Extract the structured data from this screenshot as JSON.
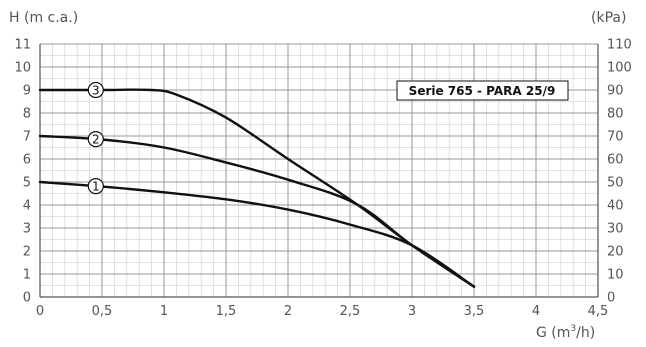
{
  "chart_data": {
    "type": "line",
    "title": "Serie 765 - PARA 25/9",
    "ylabel": "H (m c.a.)",
    "ylabel_right": "(kPa)",
    "xlabel_prefix": "G (m",
    "xlabel_sup": "3",
    "xlabel_suffix": "/h)",
    "xlim": [
      0,
      4.5
    ],
    "ylim": [
      0,
      11
    ],
    "ylim_right": [
      0,
      110
    ],
    "grid": true,
    "x_ticks": [
      "0",
      "0,5",
      "1",
      "1,5",
      "2",
      "2,5",
      "3",
      "3,5",
      "4",
      "4,5"
    ],
    "y_ticks": [
      "0",
      "1",
      "2",
      "3",
      "4",
      "5",
      "6",
      "7",
      "8",
      "9",
      "10",
      "11"
    ],
    "y_ticks_right": [
      "0",
      "10",
      "20",
      "30",
      "40",
      "50",
      "60",
      "70",
      "80",
      "90",
      "100",
      "110"
    ],
    "series": [
      {
        "name": "1",
        "x": [
          0,
          0.5,
          1,
          1.5,
          2,
          2.5,
          3,
          3.5
        ],
        "y": [
          5.0,
          4.8,
          4.55,
          4.25,
          3.8,
          3.15,
          2.25,
          0.45
        ]
      },
      {
        "name": "2",
        "x": [
          0,
          0.5,
          1,
          1.5,
          2,
          2.55,
          3,
          3.5
        ],
        "y": [
          7.0,
          6.85,
          6.5,
          5.85,
          5.1,
          4.05,
          2.25,
          0.45
        ]
      },
      {
        "name": "3",
        "x": [
          0,
          0.5,
          0.9,
          1.1,
          1.5,
          2,
          2.55,
          3,
          3.5
        ],
        "y": [
          9.0,
          9.0,
          9.0,
          8.8,
          7.8,
          6.0,
          4.05,
          2.25,
          0.45
        ]
      }
    ],
    "curve_label_x": 0.45
  }
}
